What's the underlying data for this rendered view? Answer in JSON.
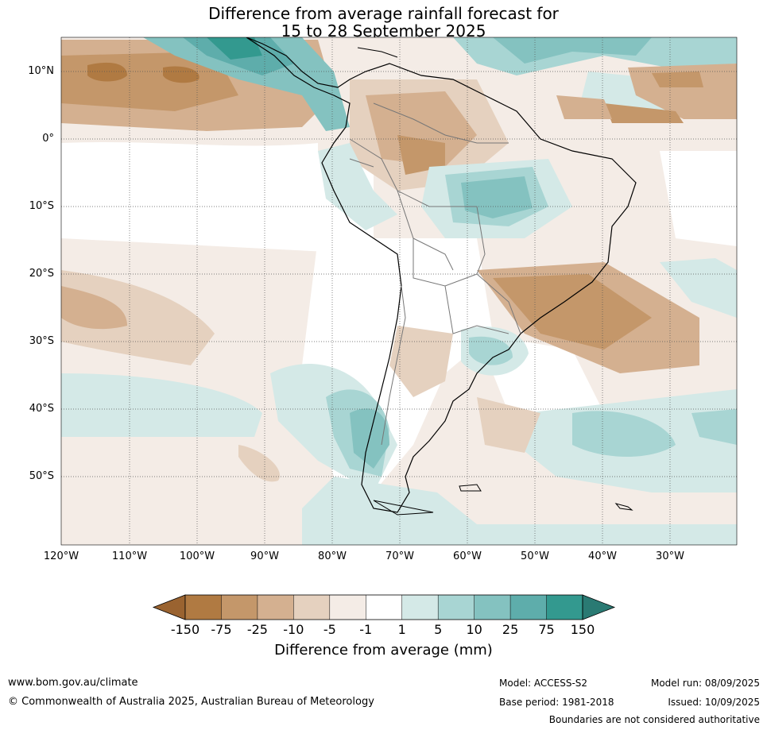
{
  "title": {
    "line1": "Difference from average rainfall forecast for",
    "line2": "15 to 28 September 2025"
  },
  "map": {
    "lat_labels": [
      "10°N",
      "0°",
      "10°S",
      "20°S",
      "30°S",
      "40°S",
      "50°S"
    ],
    "lon_labels": [
      "120°W",
      "110°W",
      "100°W",
      "90°W",
      "80°W",
      "70°W",
      "60°W",
      "50°W",
      "40°W",
      "30°W"
    ]
  },
  "colorbar": {
    "ticks": [
      "-150",
      "-75",
      "-25",
      "-10",
      "-5",
      "-1",
      "1",
      "5",
      "10",
      "25",
      "75",
      "150"
    ],
    "colors": [
      "#9a6330",
      "#b07a42",
      "#c4976a",
      "#d4b090",
      "#e5d1bf",
      "#f4ece6",
      "#ffffff",
      "#d4e9e7",
      "#a8d5d3",
      "#84c2c0",
      "#5eadab",
      "#33998f",
      "#2a7a73"
    ],
    "label": "Difference from average (mm)"
  },
  "footer": {
    "website": "www.bom.gov.au/climate",
    "copyright": "© Commonwealth of Australia 2025, Australian Bureau of Meteorology",
    "model": "Model: ACCESS-S2",
    "base_period": "Base period: 1981-2018",
    "model_run": "Model run: 08/09/2025",
    "issued": "Issued: 10/09/2025",
    "disclaimer": "Boundaries are not considered authoritative"
  }
}
